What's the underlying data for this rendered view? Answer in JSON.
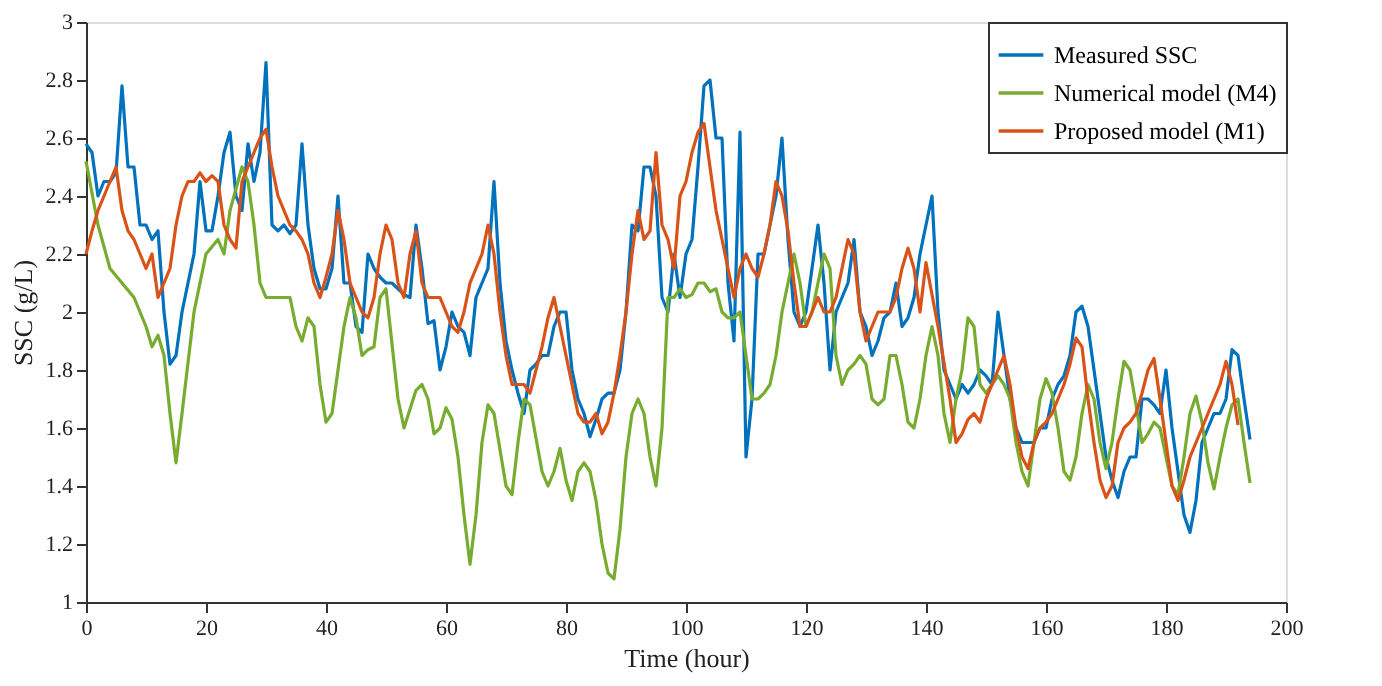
{
  "chart_data": {
    "type": "line",
    "xlabel": "Time (hour)",
    "ylabel": "SSC (g/L)",
    "xlim": [
      0,
      200
    ],
    "xticks": [
      0,
      20,
      40,
      60,
      80,
      100,
      120,
      140,
      160,
      180,
      200
    ],
    "ylim": [
      1,
      3
    ],
    "yticks": [
      1,
      1.2,
      1.4,
      1.6,
      1.8,
      2,
      2.2,
      2.4,
      2.6,
      2.8,
      3
    ],
    "grid": false,
    "legend": "top right",
    "marker": "none",
    "line_style": "solid",
    "series": [
      {
        "name": "Measured SSC",
        "color": "#0072bd",
        "x": [
          0,
          1,
          2,
          3,
          4,
          5,
          6,
          7,
          8,
          9,
          10,
          11,
          12,
          13,
          14,
          15,
          16,
          17,
          18,
          19,
          20,
          21,
          22,
          23,
          24,
          25,
          26,
          27,
          28,
          29,
          30,
          31,
          32,
          33,
          34,
          35,
          36,
          37,
          38,
          39,
          40,
          41,
          42,
          43,
          44,
          45,
          46,
          47,
          48,
          49,
          50,
          51,
          52,
          53,
          54,
          55,
          56,
          57,
          58,
          59,
          60,
          61,
          62,
          63,
          64,
          65,
          66,
          67,
          68,
          69,
          70,
          71,
          72,
          73,
          74,
          75,
          76,
          77,
          78,
          79,
          80,
          81,
          82,
          83,
          84,
          85,
          86,
          87,
          88,
          89,
          90,
          91,
          92,
          93,
          94,
          95,
          96,
          97,
          98,
          99,
          100,
          101,
          102,
          103,
          104,
          105,
          106,
          107,
          108,
          109,
          110,
          111,
          112,
          113,
          114,
          115,
          116,
          117,
          118,
          119,
          120,
          121,
          122,
          123,
          124,
          125,
          126,
          127,
          128,
          129,
          130,
          131,
          132,
          133,
          134,
          135,
          136,
          137,
          138,
          139,
          140,
          141,
          142,
          143,
          144,
          145,
          146,
          147,
          148,
          149,
          150,
          151,
          152,
          153,
          154,
          155,
          156,
          157,
          158,
          159,
          160,
          161,
          162,
          163,
          164,
          165,
          166,
          167,
          168,
          169,
          170,
          171,
          172,
          173,
          174,
          175,
          176,
          177,
          178,
          179,
          180,
          181,
          182,
          183,
          184,
          185,
          186,
          187,
          188,
          189,
          190,
          191,
          192,
          193,
          194
        ],
        "values": [
          2.58,
          2.55,
          2.4,
          2.45,
          2.45,
          2.48,
          2.78,
          2.5,
          2.5,
          2.3,
          2.3,
          2.25,
          2.28,
          2.0,
          1.82,
          1.85,
          2.0,
          2.1,
          2.2,
          2.45,
          2.28,
          2.28,
          2.4,
          2.55,
          2.62,
          2.4,
          2.35,
          2.58,
          2.45,
          2.55,
          2.86,
          2.3,
          2.28,
          2.3,
          2.27,
          2.3,
          2.58,
          2.3,
          2.15,
          2.08,
          2.08,
          2.15,
          2.4,
          2.1,
          2.1,
          1.95,
          1.93,
          2.2,
          2.15,
          2.12,
          2.1,
          2.1,
          2.08,
          2.06,
          2.05,
          2.3,
          2.15,
          1.96,
          1.97,
          1.8,
          1.88,
          2.0,
          1.95,
          1.93,
          1.85,
          2.05,
          2.1,
          2.15,
          2.45,
          2.1,
          1.9,
          1.8,
          1.72,
          1.65,
          1.8,
          1.82,
          1.85,
          1.85,
          1.95,
          2.0,
          2.0,
          1.8,
          1.7,
          1.65,
          1.57,
          1.63,
          1.7,
          1.72,
          1.72,
          1.8,
          2.0,
          2.3,
          2.28,
          2.5,
          2.5,
          2.4,
          2.05,
          2.0,
          2.2,
          2.05,
          2.2,
          2.25,
          2.5,
          2.78,
          2.8,
          2.6,
          2.6,
          2.1,
          1.9,
          2.62,
          1.5,
          1.7,
          2.2,
          2.2,
          2.3,
          2.4,
          2.6,
          2.25,
          2.0,
          1.95,
          2.0,
          2.15,
          2.3,
          2.1,
          1.8,
          2.0,
          2.05,
          2.1,
          2.25,
          2.0,
          1.95,
          1.85,
          1.9,
          1.98,
          2.0,
          2.1,
          1.95,
          1.98,
          2.05,
          2.2,
          2.3,
          2.4,
          2.0,
          1.8,
          1.75,
          1.7,
          1.75,
          1.72,
          1.75,
          1.8,
          1.78,
          1.75,
          2.0,
          1.85,
          1.7,
          1.6,
          1.55,
          1.55,
          1.55,
          1.6,
          1.6,
          1.7,
          1.75,
          1.78,
          1.85,
          2.0,
          2.02,
          1.95,
          1.8,
          1.65,
          1.5,
          1.42,
          1.36,
          1.45,
          1.5,
          1.5,
          1.7,
          1.7,
          1.68,
          1.65,
          1.8,
          1.6,
          1.45,
          1.3,
          1.24,
          1.35,
          1.55,
          1.6,
          1.65,
          1.65,
          1.7,
          1.87,
          1.85,
          1.7,
          1.56
        ]
      },
      {
        "name": "Numerical model (M4)",
        "color": "#77ac30",
        "x": [
          0,
          2,
          4,
          6,
          8,
          10,
          11,
          12,
          13,
          14,
          15,
          16,
          18,
          20,
          22,
          23,
          24,
          26,
          27,
          28,
          29,
          30,
          32,
          34,
          35,
          36,
          37,
          38,
          39,
          40,
          41,
          43,
          44,
          45,
          46,
          47,
          48,
          49,
          50,
          52,
          53,
          55,
          56,
          57,
          58,
          59,
          60,
          61,
          62,
          63,
          64,
          65,
          66,
          67,
          68,
          70,
          71,
          72,
          73,
          74,
          76,
          77,
          78,
          79,
          80,
          81,
          82,
          83,
          84,
          85,
          86,
          87,
          88,
          89,
          90,
          91,
          92,
          93,
          94,
          95,
          96,
          97,
          98,
          99,
          100,
          101,
          102,
          103,
          104,
          105,
          106,
          107,
          108,
          109,
          110,
          111,
          112,
          113,
          114,
          115,
          116,
          117,
          118,
          119,
          120,
          121,
          122,
          123,
          124,
          125,
          126,
          127,
          128,
          129,
          130,
          131,
          132,
          133,
          134,
          135,
          136,
          137,
          138,
          139,
          140,
          141,
          142,
          143,
          144,
          145,
          146,
          147,
          148,
          149,
          150,
          151,
          152,
          153,
          154,
          155,
          156,
          157,
          158,
          159,
          160,
          161,
          162,
          163,
          164,
          165,
          166,
          167,
          168,
          169,
          170,
          171,
          172,
          173,
          174,
          175,
          176,
          177,
          178,
          179,
          180,
          181,
          182,
          183,
          184,
          185,
          186,
          187,
          188,
          189,
          190,
          191,
          192,
          193,
          194
        ],
        "values": [
          2.52,
          2.3,
          2.15,
          2.1,
          2.05,
          1.95,
          1.88,
          1.92,
          1.85,
          1.65,
          1.48,
          1.65,
          2.0,
          2.2,
          2.25,
          2.2,
          2.35,
          2.5,
          2.45,
          2.3,
          2.1,
          2.05,
          2.05,
          2.05,
          1.95,
          1.9,
          1.98,
          1.95,
          1.75,
          1.62,
          1.65,
          1.95,
          2.05,
          1.98,
          1.85,
          1.87,
          1.88,
          2.05,
          2.08,
          1.7,
          1.6,
          1.73,
          1.75,
          1.7,
          1.58,
          1.6,
          1.67,
          1.63,
          1.5,
          1.3,
          1.13,
          1.3,
          1.55,
          1.68,
          1.65,
          1.4,
          1.37,
          1.55,
          1.7,
          1.68,
          1.45,
          1.4,
          1.45,
          1.53,
          1.42,
          1.35,
          1.45,
          1.48,
          1.45,
          1.35,
          1.2,
          1.1,
          1.08,
          1.25,
          1.5,
          1.65,
          1.7,
          1.65,
          1.5,
          1.4,
          1.6,
          2.05,
          2.05,
          2.08,
          2.05,
          2.06,
          2.1,
          2.1,
          2.07,
          2.08,
          2.0,
          1.98,
          1.98,
          2.0,
          1.85,
          1.7,
          1.7,
          1.72,
          1.75,
          1.85,
          2.0,
          2.1,
          2.2,
          2.1,
          1.95,
          2.0,
          2.1,
          2.2,
          2.15,
          1.85,
          1.75,
          1.8,
          1.82,
          1.85,
          1.82,
          1.7,
          1.68,
          1.7,
          1.85,
          1.85,
          1.75,
          1.62,
          1.6,
          1.7,
          1.85,
          1.95,
          1.85,
          1.65,
          1.55,
          1.7,
          1.8,
          1.98,
          1.95,
          1.75,
          1.72,
          1.75,
          1.78,
          1.75,
          1.7,
          1.55,
          1.45,
          1.4,
          1.55,
          1.7,
          1.77,
          1.72,
          1.6,
          1.45,
          1.42,
          1.5,
          1.65,
          1.75,
          1.7,
          1.55,
          1.46,
          1.55,
          1.7,
          1.83,
          1.8,
          1.68,
          1.55,
          1.58,
          1.62,
          1.6,
          1.5,
          1.4,
          1.37,
          1.5,
          1.65,
          1.71,
          1.62,
          1.48,
          1.39,
          1.5,
          1.6,
          1.68,
          1.7,
          1.55,
          1.41
        ]
      },
      {
        "name": "Proposed model (M1)",
        "color": "#d95319",
        "x": [
          0,
          1,
          2,
          3,
          4,
          5,
          6,
          7,
          8,
          9,
          10,
          11,
          12,
          13,
          14,
          15,
          16,
          17,
          18,
          19,
          20,
          21,
          22,
          23,
          24,
          25,
          26,
          27,
          28,
          29,
          30,
          31,
          32,
          33,
          34,
          35,
          36,
          37,
          38,
          39,
          40,
          41,
          42,
          43,
          44,
          45,
          46,
          47,
          48,
          49,
          50,
          51,
          52,
          53,
          54,
          55,
          56,
          57,
          58,
          59,
          60,
          61,
          62,
          63,
          64,
          65,
          66,
          67,
          68,
          69,
          70,
          71,
          72,
          73,
          74,
          75,
          76,
          77,
          78,
          79,
          80,
          81,
          82,
          83,
          84,
          85,
          86,
          87,
          88,
          89,
          90,
          91,
          92,
          93,
          94,
          95,
          96,
          97,
          98,
          99,
          100,
          101,
          102,
          103,
          104,
          105,
          106,
          107,
          108,
          109,
          110,
          111,
          112,
          113,
          114,
          115,
          116,
          117,
          118,
          119,
          120,
          121,
          122,
          123,
          124,
          125,
          126,
          127,
          128,
          129,
          130,
          131,
          132,
          133,
          134,
          135,
          136,
          137,
          138,
          139,
          140,
          142,
          144,
          145,
          146,
          147,
          148,
          149,
          150,
          152,
          153,
          154,
          155,
          156,
          157,
          158,
          159,
          160,
          161,
          162,
          163,
          164,
          165,
          166,
          167,
          168,
          169,
          170,
          171,
          172,
          173,
          174,
          175,
          176,
          177,
          178,
          179,
          180,
          181,
          182,
          183,
          184,
          185,
          186,
          187,
          188,
          189,
          190,
          191,
          192
        ],
        "values": [
          2.2,
          2.28,
          2.35,
          2.4,
          2.45,
          2.5,
          2.35,
          2.28,
          2.25,
          2.2,
          2.15,
          2.2,
          2.05,
          2.1,
          2.15,
          2.3,
          2.4,
          2.45,
          2.45,
          2.48,
          2.45,
          2.47,
          2.45,
          2.3,
          2.25,
          2.22,
          2.45,
          2.5,
          2.55,
          2.6,
          2.63,
          2.5,
          2.4,
          2.35,
          2.3,
          2.28,
          2.25,
          2.2,
          2.1,
          2.05,
          2.12,
          2.2,
          2.35,
          2.25,
          2.1,
          2.05,
          2.0,
          1.98,
          2.05,
          2.2,
          2.3,
          2.25,
          2.1,
          2.05,
          2.2,
          2.28,
          2.1,
          2.05,
          2.05,
          2.05,
          2.0,
          1.95,
          1.93,
          2.0,
          2.1,
          2.15,
          2.2,
          2.3,
          2.2,
          2.0,
          1.85,
          1.75,
          1.75,
          1.75,
          1.72,
          1.8,
          1.88,
          1.98,
          2.05,
          1.95,
          1.85,
          1.75,
          1.65,
          1.62,
          1.62,
          1.65,
          1.58,
          1.62,
          1.72,
          1.85,
          2.0,
          2.2,
          2.35,
          2.25,
          2.28,
          2.55,
          2.3,
          2.25,
          2.15,
          2.4,
          2.45,
          2.55,
          2.62,
          2.65,
          2.5,
          2.35,
          2.25,
          2.15,
          2.05,
          2.15,
          2.2,
          2.15,
          2.12,
          2.2,
          2.3,
          2.45,
          2.4,
          2.28,
          2.1,
          1.95,
          1.95,
          2.0,
          2.05,
          2.0,
          2.0,
          2.05,
          2.15,
          2.25,
          2.2,
          2.0,
          1.9,
          1.95,
          2.0,
          2.0,
          2.0,
          2.05,
          2.15,
          2.22,
          2.15,
          2.0,
          2.17,
          1.95,
          1.7,
          1.55,
          1.58,
          1.63,
          1.65,
          1.62,
          1.7,
          1.8,
          1.85,
          1.75,
          1.6,
          1.5,
          1.46,
          1.55,
          1.6,
          1.62,
          1.65,
          1.7,
          1.75,
          1.82,
          1.91,
          1.88,
          1.7,
          1.55,
          1.42,
          1.36,
          1.4,
          1.55,
          1.6,
          1.62,
          1.65,
          1.72,
          1.8,
          1.84,
          1.7,
          1.55,
          1.4,
          1.35,
          1.42,
          1.5,
          1.55,
          1.6,
          1.65,
          1.7,
          1.75,
          1.83,
          1.75,
          1.61
        ]
      }
    ]
  }
}
